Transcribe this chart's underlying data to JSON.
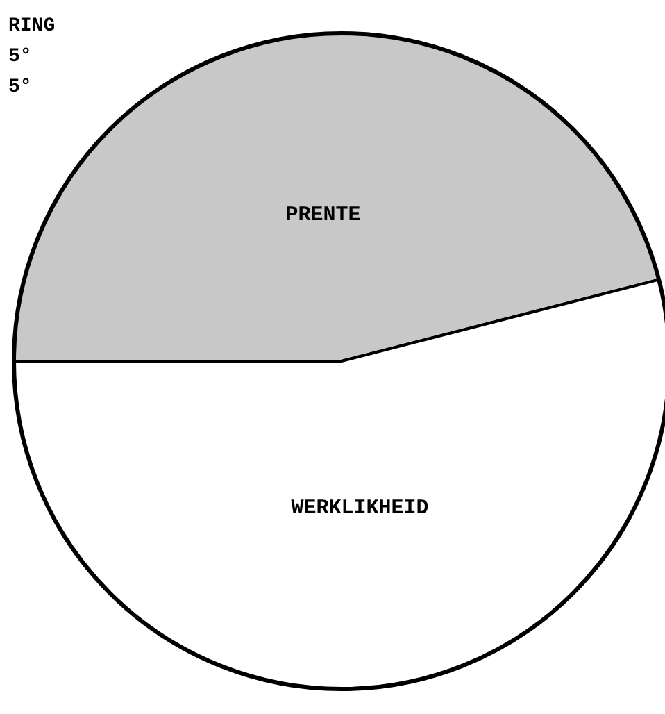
{
  "chart_data": {
    "type": "pie",
    "categories": [
      "PRENTE",
      "WERKLIKHEID"
    ],
    "values": [
      46,
      54
    ],
    "colors": [
      "#c8c8c8",
      "#ffffff"
    ],
    "annotations": [
      "RING",
      "5°",
      "5°"
    ]
  }
}
